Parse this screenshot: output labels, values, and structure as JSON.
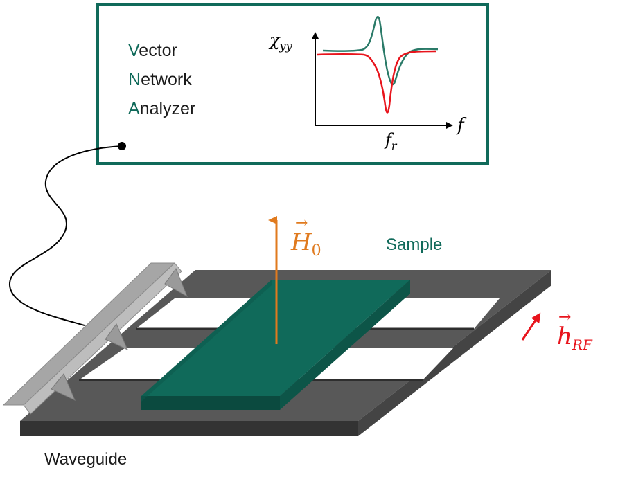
{
  "vna": {
    "line1": {
      "initial": "V",
      "rest": "ector"
    },
    "line2": {
      "initial": "N",
      "rest": "etwork"
    },
    "line3": {
      "initial": "A",
      "rest": "nalyzer"
    }
  },
  "inset_plot": {
    "ylabel": "χ",
    "ylabel_sub": "yy",
    "xlabel": "f",
    "tick_label": "f",
    "tick_label_sub": "r",
    "series_colors": {
      "green": "#2a7a68",
      "red": "#e8141c"
    }
  },
  "labels": {
    "h0": "H",
    "h0_sub": "0",
    "h0_color": "#e07a1e",
    "sample": "Sample",
    "sample_color": "#106a5a",
    "hrf": "h",
    "hrf_sub": "RF",
    "hrf_color": "#e8141c",
    "waveguide": "Waveguide"
  },
  "colors": {
    "frame": "#106a5a",
    "waveguide_top": "#585858",
    "waveguide_side": "#333333",
    "sample_top": "#106a5a",
    "sample_side": "#0b4a3f",
    "probe": "#a6a6a6"
  }
}
